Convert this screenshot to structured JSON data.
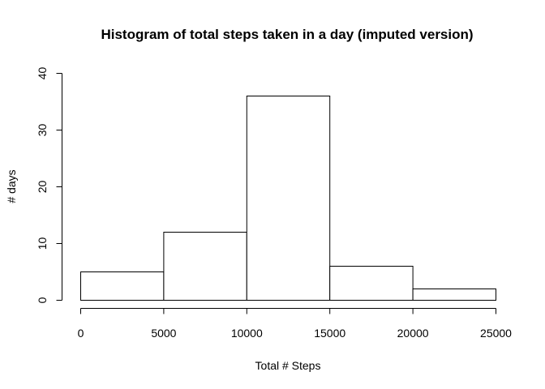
{
  "chart_data": {
    "type": "bar",
    "title": "Histogram of total steps taken in a day (imputed version)",
    "xlabel": "Total # Steps",
    "ylabel": "# days",
    "bins": [
      {
        "from": 0,
        "to": 5000,
        "count": 5
      },
      {
        "from": 5000,
        "to": 10000,
        "count": 12
      },
      {
        "from": 10000,
        "to": 15000,
        "count": 36
      },
      {
        "from": 15000,
        "to": 20000,
        "count": 6
      },
      {
        "from": 20000,
        "to": 25000,
        "count": 2
      }
    ],
    "xlim": [
      0,
      25000
    ],
    "ylim": [
      0,
      40
    ],
    "xticks": [
      0,
      5000,
      10000,
      15000,
      20000,
      25000
    ],
    "yticks": [
      0,
      10,
      20,
      30,
      40
    ],
    "grid": false,
    "colors": {
      "bar_fill": "#ffffff",
      "bar_stroke": "#000000"
    }
  }
}
